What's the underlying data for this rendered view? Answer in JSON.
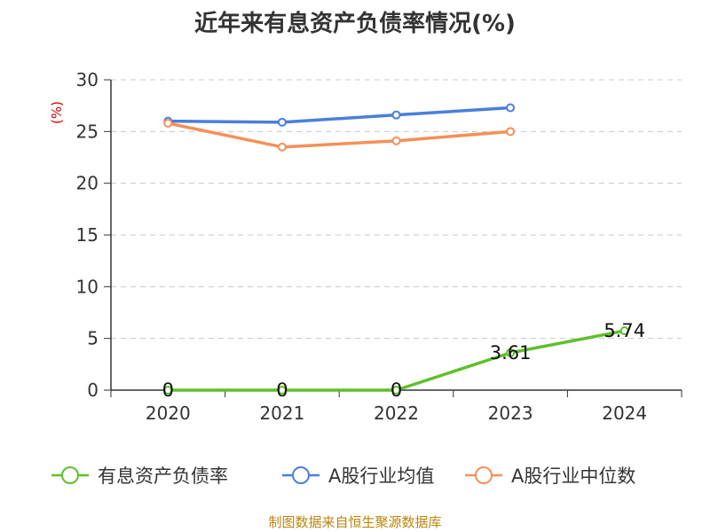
{
  "chart_data": {
    "type": "line",
    "title": "近年来有息资产负债率情况(%)",
    "ylabel": "(%)",
    "xlabel": "",
    "categories": [
      "2020",
      "2021",
      "2022",
      "2023",
      "2024"
    ],
    "ylim": [
      0,
      30
    ],
    "yticks": [
      0,
      5,
      10,
      15,
      20,
      25,
      30
    ],
    "grid": true,
    "legend_position": "bottom",
    "series": [
      {
        "name": "有息资产负债率",
        "color": "#5fc02a",
        "values": [
          0,
          0,
          0,
          3.61,
          5.74
        ],
        "labels": [
          "0",
          "0",
          "0",
          "3.61",
          "5.74"
        ]
      },
      {
        "name": "A股行业均值",
        "color": "#4a7fd9",
        "values": [
          26.0,
          25.9,
          26.6,
          27.3,
          null
        ]
      },
      {
        "name": "A股行业中位数",
        "color": "#f59058",
        "values": [
          25.8,
          23.5,
          24.1,
          25.0,
          null
        ]
      }
    ]
  },
  "source": "制图数据来自恒生聚源数据库"
}
